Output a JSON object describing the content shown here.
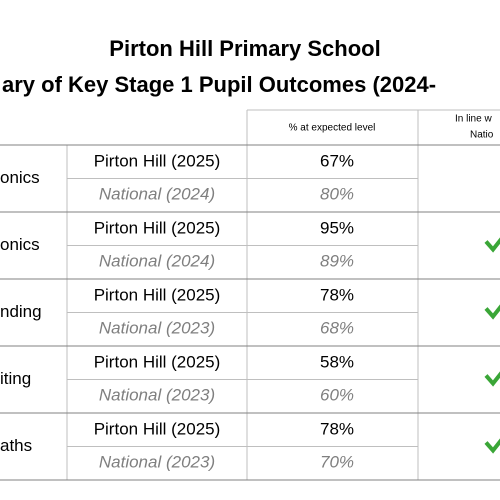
{
  "header": {
    "title": "Pirton Hill Primary School",
    "subtitle": "ary of Key Stage 1 Pupil Outcomes (2024-"
  },
  "table": {
    "columns": [
      "% at expected level",
      "In line w",
      "Natio"
    ],
    "rows": [
      {
        "subject": "onics",
        "school": "Pirton Hill (2025)",
        "school_value": "67%",
        "national": "National (2024)",
        "national_value": "80%"
      },
      {
        "subject": "onics",
        "school": "Pirton Hill (2025)",
        "school_value": "95%",
        "national": "National (2024)",
        "national_value": "89%"
      },
      {
        "subject": "nding",
        "school": "Pirton Hill (2025)",
        "school_value": "78%",
        "national": "National (2023)",
        "national_value": "68%"
      },
      {
        "subject": "iting",
        "school": "Pirton Hill (2025)",
        "school_value": "58%",
        "national": "National (2023)",
        "national_value": "60%"
      },
      {
        "subject": "aths",
        "school": "Pirton Hill (2025)",
        "school_value": "78%",
        "national": "National (2023)",
        "national_value": "70%"
      }
    ]
  }
}
